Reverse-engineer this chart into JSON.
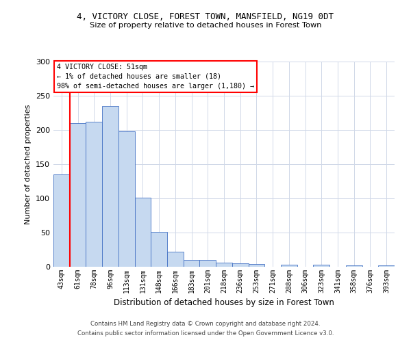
{
  "title_line1": "4, VICTORY CLOSE, FOREST TOWN, MANSFIELD, NG19 0DT",
  "title_line2": "Size of property relative to detached houses in Forest Town",
  "xlabel": "Distribution of detached houses by size in Forest Town",
  "ylabel": "Number of detached properties",
  "categories": [
    "43sqm",
    "61sqm",
    "78sqm",
    "96sqm",
    "113sqm",
    "131sqm",
    "148sqm",
    "166sqm",
    "183sqm",
    "201sqm",
    "218sqm",
    "236sqm",
    "253sqm",
    "271sqm",
    "288sqm",
    "306sqm",
    "323sqm",
    "341sqm",
    "358sqm",
    "376sqm",
    "393sqm"
  ],
  "values": [
    135,
    210,
    212,
    235,
    198,
    101,
    51,
    22,
    10,
    10,
    6,
    5,
    4,
    0,
    3,
    0,
    3,
    0,
    2,
    0,
    2
  ],
  "bar_color": "#c6d9f0",
  "bar_edge_color": "#4472c4",
  "annotation_box_text": "4 VICTORY CLOSE: 51sqm\n← 1% of detached houses are smaller (18)\n98% of semi-detached houses are larger (1,180) →",
  "footer_line1": "Contains HM Land Registry data © Crown copyright and database right 2024.",
  "footer_line2": "Contains public sector information licensed under the Open Government Licence v3.0.",
  "ylim": [
    0,
    300
  ],
  "yticks": [
    0,
    50,
    100,
    150,
    200,
    250,
    300
  ],
  "background_color": "#ffffff",
  "grid_color": "#d0d8e8",
  "red_line_index": 0.5
}
